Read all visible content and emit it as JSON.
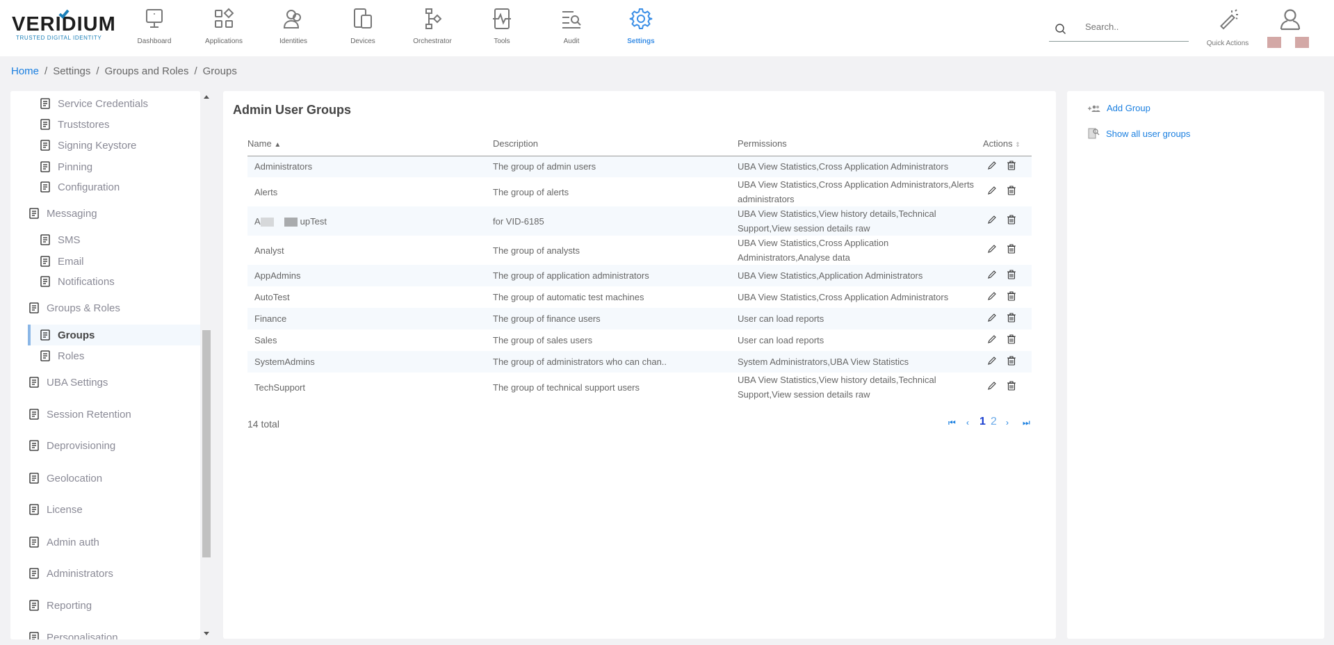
{
  "header": {
    "logo": {
      "word": "VERIDIUM",
      "tagline": "TRUSTED DIGITAL IDENTITY"
    },
    "nav": [
      {
        "label": "Dashboard",
        "icon": "monitor-icon"
      },
      {
        "label": "Applications",
        "icon": "apps-icon"
      },
      {
        "label": "Identities",
        "icon": "users-icon"
      },
      {
        "label": "Devices",
        "icon": "devices-icon"
      },
      {
        "label": "Orchestrator",
        "icon": "flow-icon"
      },
      {
        "label": "Tools",
        "icon": "pulse-icon"
      },
      {
        "label": "Audit",
        "icon": "list-search-icon"
      },
      {
        "label": "Settings",
        "icon": "gear-icon",
        "active": true
      }
    ],
    "search_placeholder": "Search..",
    "quick_actions": "Quick Actions",
    "accent": "#3a8ee6"
  },
  "breadcrumb": [
    "Home",
    "Settings",
    "Groups and Roles",
    "Groups"
  ],
  "sidebar": {
    "items": [
      {
        "label": "Service Credentials",
        "level": "sub"
      },
      {
        "label": "Truststores",
        "level": "sub"
      },
      {
        "label": "Signing Keystore",
        "level": "sub"
      },
      {
        "label": "Pinning",
        "level": "sub"
      },
      {
        "label": "Configuration",
        "level": "sub"
      },
      {
        "label": "Messaging",
        "level": "top"
      },
      {
        "label": "SMS",
        "level": "sub"
      },
      {
        "label": "Email",
        "level": "sub"
      },
      {
        "label": "Notifications",
        "level": "sub"
      },
      {
        "label": "Groups & Roles",
        "level": "top"
      },
      {
        "label": "Groups",
        "level": "sub",
        "active": true
      },
      {
        "label": "Roles",
        "level": "sub"
      },
      {
        "label": "UBA Settings",
        "level": "top"
      },
      {
        "label": "Session Retention",
        "level": "top"
      },
      {
        "label": "Deprovisioning",
        "level": "top"
      },
      {
        "label": "Geolocation",
        "level": "top"
      },
      {
        "label": "License",
        "level": "top"
      },
      {
        "label": "Admin auth",
        "level": "top"
      },
      {
        "label": "Administrators",
        "level": "top"
      },
      {
        "label": "Reporting",
        "level": "top"
      },
      {
        "label": "Personalisation",
        "level": "top"
      }
    ]
  },
  "main": {
    "title": "Admin User Groups",
    "columns": [
      "Name",
      "Description",
      "Permissions",
      "Actions"
    ],
    "sort_indicator": "^",
    "rows": [
      {
        "name": "Administrators",
        "description": "The group of admin users",
        "permissions": "UBA View Statistics,Cross Application Administrators"
      },
      {
        "name": "Alerts",
        "description": "The group of alerts",
        "permissions": "UBA View Statistics,Cross Application Administrators,Alerts administrators"
      },
      {
        "name": "A",
        "name_suffix": "upTest",
        "redacted": true,
        "description": "for VID-6185",
        "permissions": "UBA View Statistics,View history details,Technical Support,View session details raw"
      },
      {
        "name": "Analyst",
        "description": "The group of analysts",
        "permissions": "UBA View Statistics,Cross Application Administrators,Analyse data"
      },
      {
        "name": "AppAdmins",
        "description": "The group of application administrators",
        "permissions": "UBA View Statistics,Application Administrators"
      },
      {
        "name": "AutoTest",
        "description": "The group of automatic test machines",
        "permissions": "UBA View Statistics,Cross Application Administrators"
      },
      {
        "name": "Finance",
        "description": "The group of finance users",
        "permissions": "User can load reports"
      },
      {
        "name": "Sales",
        "description": "The group of sales users",
        "permissions": "User can load reports"
      },
      {
        "name": "SystemAdmins",
        "description": "The group of administrators who can chan..",
        "permissions": "System Administrators,UBA View Statistics"
      },
      {
        "name": "TechSupport",
        "description": "The group of technical support users",
        "permissions": "UBA View Statistics,View history details,Technical Support,View session details raw"
      }
    ],
    "total": "14 total",
    "pagination": {
      "current": "1",
      "pages": [
        "1",
        "2"
      ]
    }
  },
  "actions_panel": {
    "add_group": "Add Group",
    "show_all": "Show all user groups"
  }
}
